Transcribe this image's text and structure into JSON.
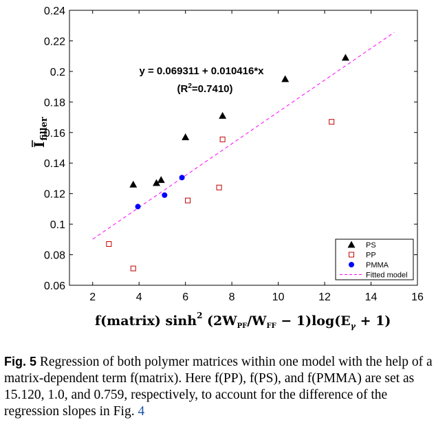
{
  "chart_data": {
    "type": "scatter",
    "xlim": [
      1,
      16
    ],
    "ylim": [
      0.06,
      0.24
    ],
    "x_ticks": [
      "2",
      "4",
      "6",
      "8",
      "10",
      "12",
      "14",
      "16"
    ],
    "y_ticks": [
      "0.06",
      "0.08",
      "0.1",
      "0.12",
      "0.14",
      "0.16",
      "0.18",
      "0.2",
      "0.22",
      "0.24"
    ],
    "ylabel": "Ī filler",
    "xlabel": "f(matrix) sinh²(2W_PF/W_FF − 1) log(E_γ + 1)",
    "annotations": [
      "y = 0.069311 + 0.010416*x",
      "(R²=0.7410)"
    ],
    "series": [
      {
        "name": "PS",
        "marker": "triangle",
        "color": "#000000",
        "points": [
          [
            3.75,
            0.126
          ],
          [
            4.75,
            0.127
          ],
          [
            4.95,
            0.129
          ],
          [
            6.0,
            0.157
          ],
          [
            7.6,
            0.171
          ],
          [
            10.3,
            0.195
          ],
          [
            12.9,
            0.209
          ]
        ]
      },
      {
        "name": "PP",
        "marker": "square-open",
        "color": "#c00000",
        "points": [
          [
            2.7,
            0.087
          ],
          [
            3.75,
            0.071
          ],
          [
            6.1,
            0.1155
          ],
          [
            7.45,
            0.124
          ],
          [
            7.6,
            0.1555
          ],
          [
            12.3,
            0.167
          ]
        ]
      },
      {
        "name": "PMMA",
        "marker": "circle",
        "color": "#0000ff",
        "points": [
          [
            3.95,
            0.1115
          ],
          [
            5.1,
            0.119
          ],
          [
            5.85,
            0.1305
          ]
        ]
      },
      {
        "name": "Fitted model",
        "marker": "dashed-line",
        "color": "#ff00ff",
        "intercept": 0.069311,
        "slope": 0.010416,
        "x_range": [
          2.0,
          15.0
        ]
      }
    ],
    "legend_position": "bottom-right"
  },
  "caption": {
    "fig": "Fig. 5",
    "text": " Regression of both polymer matrices within one model with the help of a matrix-dependent term f(matrix). Here f(PP), f(PS), and f(PMMA) are set as 15.120, 1.0, and 0.759, respectively, to account for the difference of the regression slopes in Fig. ",
    "ref": "4"
  }
}
